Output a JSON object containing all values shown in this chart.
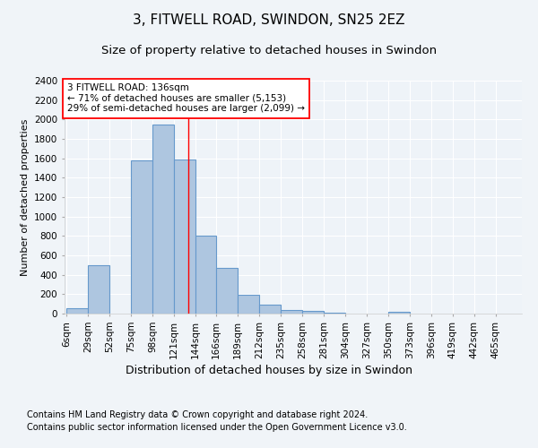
{
  "title1": "3, FITWELL ROAD, SWINDON, SN25 2EZ",
  "title2": "Size of property relative to detached houses in Swindon",
  "xlabel": "Distribution of detached houses by size in Swindon",
  "ylabel": "Number of detached properties",
  "categories": [
    "6sqm",
    "29sqm",
    "52sqm",
    "75sqm",
    "98sqm",
    "121sqm",
    "144sqm",
    "166sqm",
    "189sqm",
    "212sqm",
    "235sqm",
    "258sqm",
    "281sqm",
    "304sqm",
    "327sqm",
    "350sqm",
    "373sqm",
    "396sqm",
    "419sqm",
    "442sqm",
    "465sqm"
  ],
  "bar_heights": [
    60,
    500,
    0,
    1580,
    1950,
    1590,
    800,
    470,
    195,
    90,
    35,
    28,
    10,
    0,
    0,
    20,
    0,
    0,
    0,
    0,
    0
  ],
  "bar_color": "#aec6e0",
  "bar_edge_color": "#6699cc",
  "annotation_text_line1": "3 FITWELL ROAD: 136sqm",
  "annotation_text_line2": "← 71% of detached houses are smaller (5,153)",
  "annotation_text_line3": "29% of semi-detached houses are larger (2,099) →",
  "ylim": [
    0,
    2400
  ],
  "yticks": [
    0,
    200,
    400,
    600,
    800,
    1000,
    1200,
    1400,
    1600,
    1800,
    2000,
    2200,
    2400
  ],
  "footnote1": "Contains HM Land Registry data © Crown copyright and database right 2024.",
  "footnote2": "Contains public sector information licensed under the Open Government Licence v3.0.",
  "bg_color": "#f0f4f8",
  "plot_bg_color": "#eef3f8",
  "grid_color": "#ffffff",
  "title1_fontsize": 11,
  "title2_fontsize": 9.5,
  "xlabel_fontsize": 9,
  "ylabel_fontsize": 8,
  "tick_fontsize": 7.5,
  "footnote_fontsize": 7,
  "property_size": 136
}
